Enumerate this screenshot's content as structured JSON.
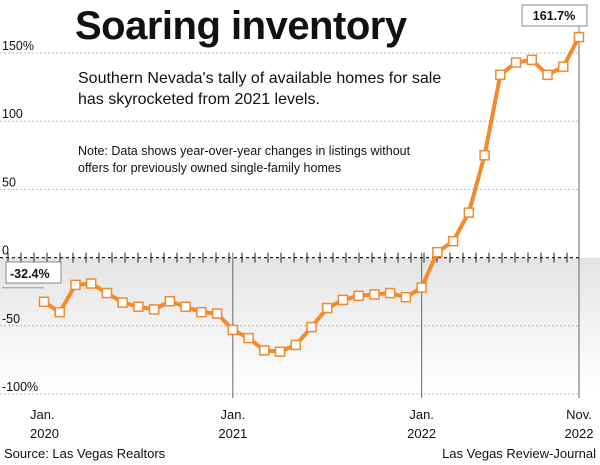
{
  "chart_data": {
    "type": "line",
    "title": "Soaring inventory",
    "subtitle": "Southern Nevada's tally of available homes for sale has skyrocketed from 2021 levels.",
    "note": "Note: Data shows year-over-year changes in listings without offers for previously owned single-family homes",
    "source": "Source: Las Vegas Realtors",
    "credit": "Las Vegas Review-Journal",
    "ylim": [
      -100,
      162
    ],
    "yticks": [
      {
        "value": 150,
        "label": "150%"
      },
      {
        "value": 100,
        "label": "100"
      },
      {
        "value": 50,
        "label": "50"
      },
      {
        "value": 0,
        "label": "0"
      },
      {
        "value": -50,
        "label": "-50"
      },
      {
        "value": -100,
        "label": "-100%"
      }
    ],
    "xticks": [
      {
        "index": 0,
        "month": "Jan.",
        "year": "2020"
      },
      {
        "index": 12,
        "month": "Jan.",
        "year": "2021"
      },
      {
        "index": 24,
        "month": "Jan.",
        "year": "2022"
      },
      {
        "index": 34,
        "month": "Nov.",
        "year": "2022"
      }
    ],
    "first_label": "-32.4%",
    "last_label": "161.7%",
    "series": [
      {
        "color": "#f28a2e",
        "values": [
          -32.4,
          -40,
          -20,
          -19,
          -26,
          -33,
          -36,
          -38,
          -32,
          -36,
          -40,
          -41,
          -53,
          -59,
          -68,
          -69,
          -64,
          -51,
          -37,
          -31,
          -28,
          -27,
          -26,
          -29,
          -22,
          4,
          12,
          33,
          75,
          134,
          143,
          145,
          134,
          140,
          161.7
        ]
      }
    ],
    "grid": true
  }
}
